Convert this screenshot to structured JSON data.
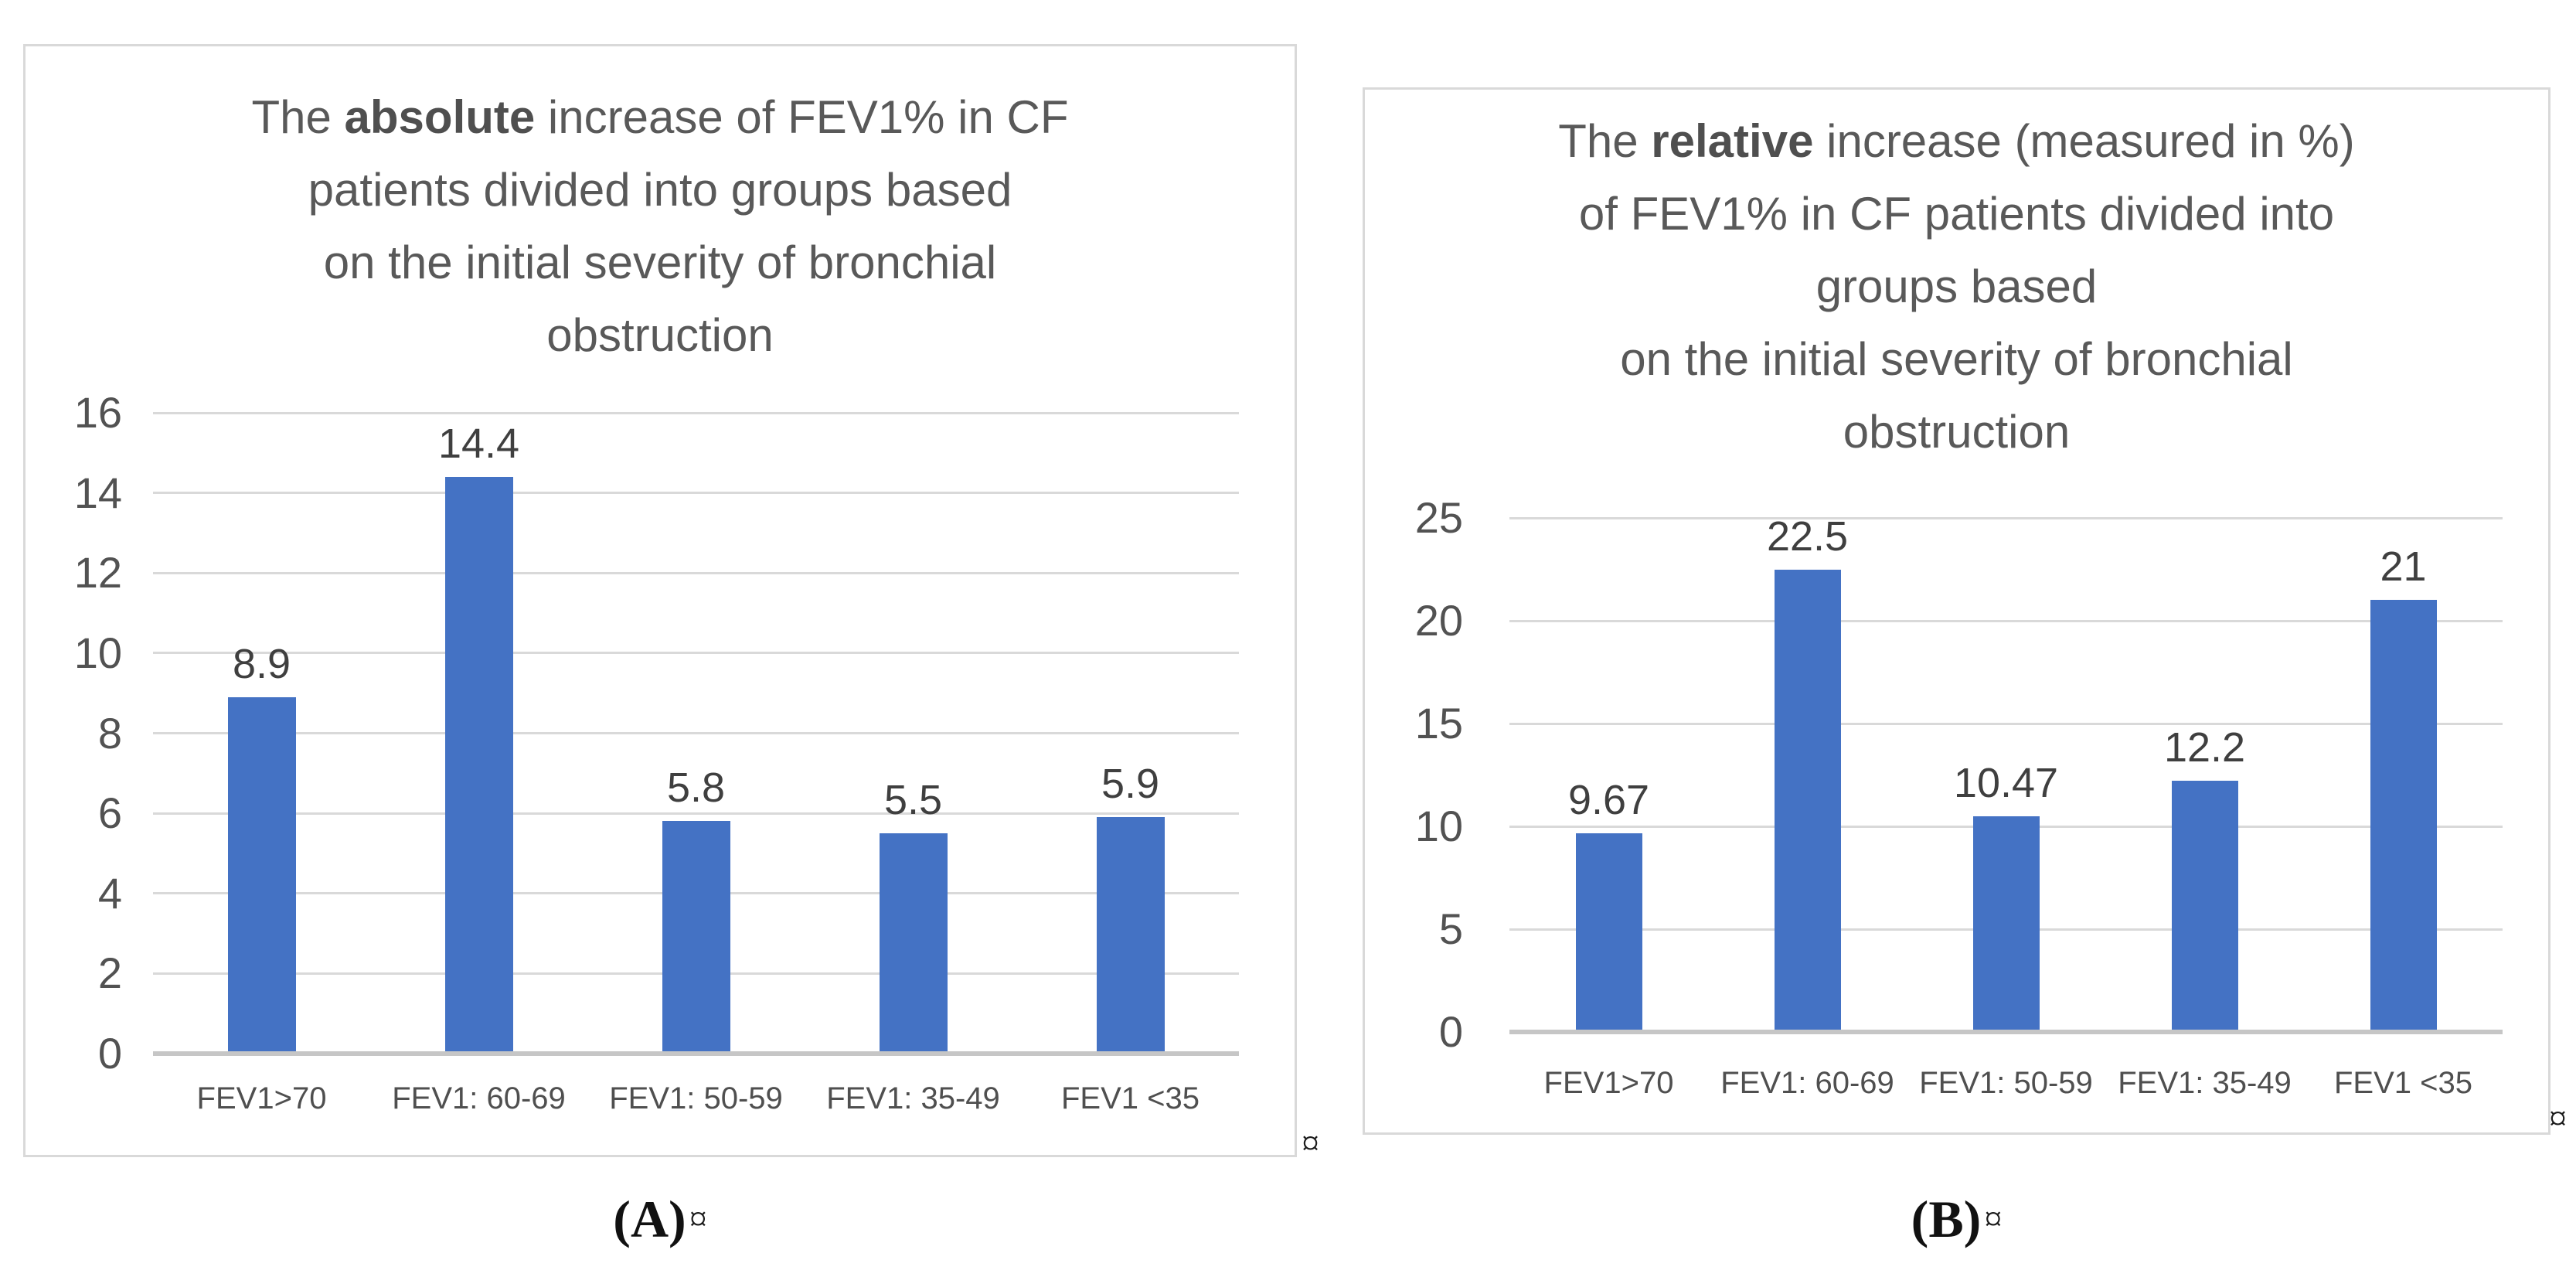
{
  "figure": {
    "panels": [
      {
        "id": "A",
        "caption_label": "(A)",
        "caption_mark": "¤"
      },
      {
        "id": "B",
        "caption_label": "(B)",
        "caption_mark": "¤"
      }
    ],
    "stray_marks": {
      "after_panel_a": "¤",
      "right_edge": "¤"
    },
    "colors": {
      "bar": "#4472C4",
      "gridline": "#D9D9D9",
      "axis_line": "#C6C6C6",
      "title_text": "#595959",
      "data_label_text": "#3F3F3F",
      "panel_border": "#D9D9D9"
    }
  },
  "chart_data": [
    {
      "type": "bar",
      "panel": "A",
      "title_plain": "The absolute increase of FEV1% in CF patients divided into groups based on the initial severity of bronchial obstruction",
      "title_lines": [
        [
          {
            "text": "The ",
            "bold": false
          },
          {
            "text": "absolute",
            "bold": true
          },
          {
            "text": " increase of FEV1% in CF",
            "bold": false
          }
        ],
        [
          {
            "text": "patients divided into groups based",
            "bold": false
          }
        ],
        [
          {
            "text": "on the initial severity of bronchial",
            "bold": false
          }
        ],
        [
          {
            "text": "obstruction",
            "bold": false
          }
        ]
      ],
      "categories": [
        "FEV1>70",
        "FEV1: 60-69",
        "FEV1: 50-59",
        "FEV1: 35-49",
        "FEV1 <35"
      ],
      "values": [
        8.9,
        14.4,
        5.8,
        5.5,
        5.9
      ],
      "data_labels": [
        "8.9",
        "14.4",
        "5.8",
        "5.5",
        "5.9"
      ],
      "xlabel": "",
      "ylabel": "",
      "ylim": [
        0,
        16
      ],
      "ytick_step": 2,
      "ytick_labels": [
        "0",
        "2",
        "4",
        "6",
        "8",
        "10",
        "12",
        "14",
        "16"
      ],
      "grid": true,
      "legend": false,
      "bar_color": "#4472C4"
    },
    {
      "type": "bar",
      "panel": "B",
      "title_plain": "The relative increase (measured in %) of FEV1% in CF patients divided into groups based on the initial severity of bronchial obstruction",
      "title_lines": [
        [
          {
            "text": "The ",
            "bold": false
          },
          {
            "text": "relative",
            "bold": true
          },
          {
            "text": " increase (measured in %)",
            "bold": false
          }
        ],
        [
          {
            "text": "of FEV1% in CF patients divided into",
            "bold": false
          }
        ],
        [
          {
            "text": "groups based",
            "bold": false
          }
        ],
        [
          {
            "text": "on the initial severity of bronchial",
            "bold": false
          }
        ],
        [
          {
            "text": "obstruction",
            "bold": false
          }
        ]
      ],
      "categories": [
        "FEV1>70",
        "FEV1: 60-69",
        "FEV1: 50-59",
        "FEV1: 35-49",
        "FEV1 <35"
      ],
      "values": [
        9.67,
        22.5,
        10.47,
        12.2,
        21
      ],
      "data_labels": [
        "9.67",
        "22.5",
        "10.47",
        "12.2",
        "21"
      ],
      "xlabel": "",
      "ylabel": "",
      "ylim": [
        0,
        25
      ],
      "ytick_step": 5,
      "ytick_labels": [
        "0",
        "5",
        "10",
        "15",
        "20",
        "25"
      ],
      "grid": true,
      "legend": false,
      "bar_color": "#4472C4"
    }
  ]
}
